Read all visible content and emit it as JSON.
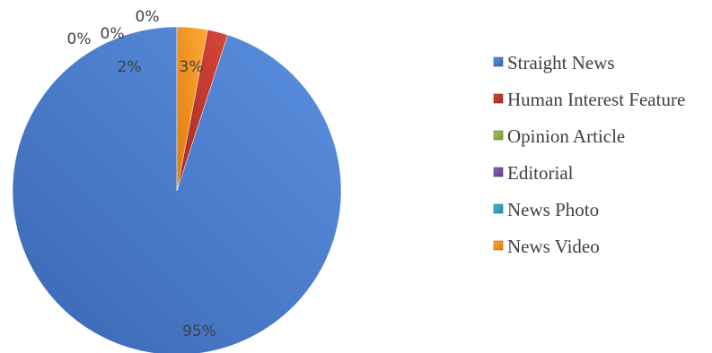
{
  "chart_data": {
    "type": "pie",
    "title": "",
    "legend_position": "right",
    "labels_shown_as": "percent",
    "slices": [
      {
        "name": "Straight News",
        "value": 95,
        "label": "95%",
        "color": "#4a7dce"
      },
      {
        "name": "Human Interest Feature",
        "value": 2,
        "label": "2%",
        "color": "#c0392b"
      },
      {
        "name": "Opinion Article",
        "value": 0,
        "label": "0%",
        "color": "#8fb23f"
      },
      {
        "name": "Editorial",
        "value": 0,
        "label": "0%",
        "color": "#7b4fa0"
      },
      {
        "name": "News Photo",
        "value": 0,
        "label": "0%",
        "color": "#2fa4c2"
      },
      {
        "name": "News Video",
        "value": 3,
        "label": "3%",
        "color": "#f0921d"
      }
    ]
  }
}
